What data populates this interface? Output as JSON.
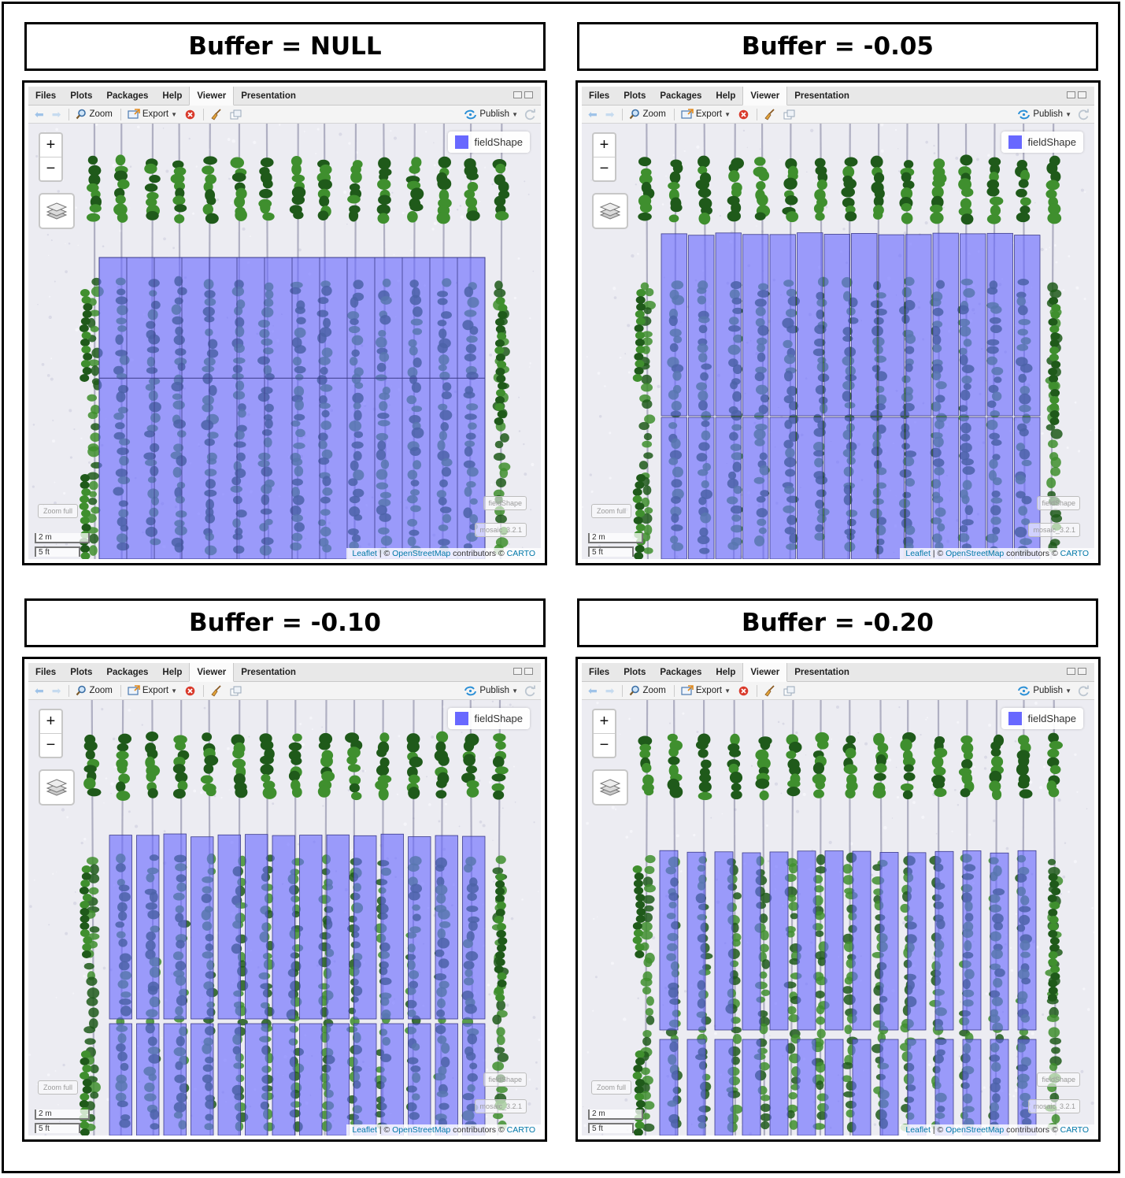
{
  "panels": [
    {
      "title": "Buffer = NULL"
    },
    {
      "title": "Buffer = -0.05"
    },
    {
      "title": "Buffer = -0.10"
    },
    {
      "title": "Buffer = -0.20"
    }
  ],
  "tabs": [
    "Files",
    "Plots",
    "Packages",
    "Help",
    "Viewer",
    "Presentation"
  ],
  "active_tab": "Viewer",
  "toolbar": {
    "zoom_label": "Zoom",
    "export_label": "Export",
    "publish_label": "Publish"
  },
  "map": {
    "zoom_in": "+",
    "zoom_out": "−",
    "legend_label": "fieldShape",
    "zoom_full_label": "Zoom full",
    "overlay_field_label": "fieldShape",
    "overlay_mosaic_label": "mosaic_3.2.1",
    "scale_metric": "2 m",
    "scale_imperial": "5 ft",
    "attribution": {
      "leaflet": "Leaflet",
      "sep": " | © ",
      "osm": "OpenStreetMap",
      "contrib": " contributors © ",
      "carto": "CARTO"
    }
  },
  "colors": {
    "polygon_fill": "#6868ff",
    "polygon_stroke": "#3b3b8a",
    "tree_dark": "#1f5a1a",
    "tree_light": "#3f8f2e",
    "link": "#0078a8"
  }
}
